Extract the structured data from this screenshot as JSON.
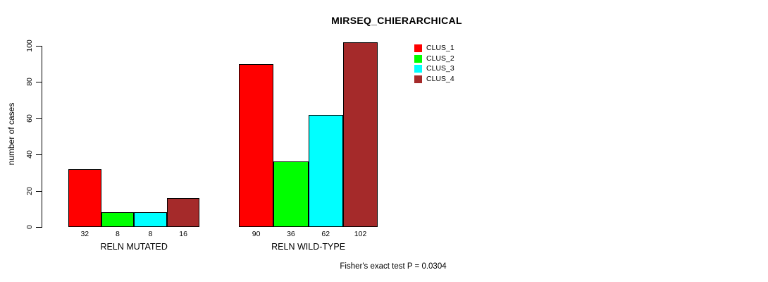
{
  "chart_data": {
    "type": "bar",
    "title": "MIRSEQ_CHIERARCHICAL",
    "ylabel": "number of cases",
    "xlabel": "",
    "categories": [
      "RELN MUTATED",
      "RELN WILD-TYPE"
    ],
    "series": [
      {
        "name": "CLUS_1",
        "color": "#FF0000",
        "values": [
          32,
          90
        ]
      },
      {
        "name": "CLUS_2",
        "color": "#00FF00",
        "values": [
          8,
          36
        ]
      },
      {
        "name": "CLUS_3",
        "color": "#00FFFF",
        "values": [
          8,
          62
        ]
      },
      {
        "name": "CLUS_4",
        "color": "#A52A2A",
        "values": [
          16,
          102
        ]
      }
    ],
    "yticks": [
      0,
      20,
      40,
      60,
      80,
      100
    ],
    "ylim": [
      0,
      103
    ],
    "grid": false,
    "bar_border_color": "#000000",
    "legend_position": "inside-top-right",
    "annotation": "Fisher's exact test P = 0.0304"
  }
}
